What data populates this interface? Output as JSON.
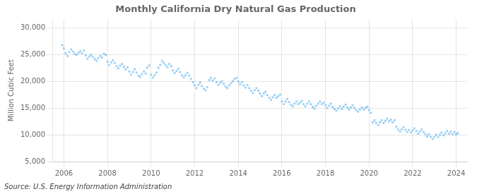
{
  "chart_data": {
    "type": "scatter",
    "title": "Monthly California Dry Natural Gas Production",
    "ylabel": "Million Cubic Feet",
    "annotations": [
      "Source: U.S. Energy Information Administration"
    ],
    "marker": "square",
    "grid": true,
    "xlim": [
      2005.5,
      2024.5
    ],
    "ylim": [
      5000,
      31500
    ],
    "xticks": [
      2006,
      2008,
      2010,
      2012,
      2014,
      2016,
      2018,
      2020,
      2022,
      2024
    ],
    "yticks": [
      {
        "value": 5000,
        "label": "5,000"
      },
      {
        "value": 10000,
        "label": "10,000"
      },
      {
        "value": 15000,
        "label": "15,000"
      },
      {
        "value": 20000,
        "label": "20,000"
      },
      {
        "value": 25000,
        "label": "25,000"
      },
      {
        "value": 30000,
        "label": "30,000"
      }
    ],
    "x": [
      2005.92,
      2006.0,
      2006.08,
      2006.17,
      2006.25,
      2006.33,
      2006.42,
      2006.5,
      2006.58,
      2006.67,
      2006.75,
      2006.83,
      2006.92,
      2007.0,
      2007.08,
      2007.17,
      2007.25,
      2007.33,
      2007.42,
      2007.5,
      2007.58,
      2007.67,
      2007.75,
      2007.83,
      2007.92,
      2008.0,
      2008.08,
      2008.17,
      2008.25,
      2008.33,
      2008.42,
      2008.5,
      2008.58,
      2008.67,
      2008.75,
      2008.83,
      2008.92,
      2009.0,
      2009.08,
      2009.17,
      2009.25,
      2009.33,
      2009.42,
      2009.5,
      2009.58,
      2009.67,
      2009.75,
      2009.83,
      2009.92,
      2010.0,
      2010.08,
      2010.17,
      2010.25,
      2010.33,
      2010.42,
      2010.5,
      2010.58,
      2010.67,
      2010.75,
      2010.83,
      2010.92,
      2011.0,
      2011.08,
      2011.17,
      2011.25,
      2011.33,
      2011.42,
      2011.5,
      2011.58,
      2011.67,
      2011.75,
      2011.83,
      2011.92,
      2012.0,
      2012.08,
      2012.17,
      2012.25,
      2012.33,
      2012.42,
      2012.5,
      2012.58,
      2012.67,
      2012.75,
      2012.83,
      2012.92,
      2013.0,
      2013.08,
      2013.17,
      2013.25,
      2013.33,
      2013.42,
      2013.5,
      2013.58,
      2013.67,
      2013.75,
      2013.83,
      2013.92,
      2014.0,
      2014.08,
      2014.17,
      2014.25,
      2014.33,
      2014.42,
      2014.5,
      2014.58,
      2014.67,
      2014.75,
      2014.83,
      2014.92,
      2015.0,
      2015.08,
      2015.17,
      2015.25,
      2015.33,
      2015.42,
      2015.5,
      2015.58,
      2015.67,
      2015.75,
      2015.83,
      2015.92,
      2016.0,
      2016.08,
      2016.17,
      2016.25,
      2016.33,
      2016.42,
      2016.5,
      2016.58,
      2016.67,
      2016.75,
      2016.83,
      2016.92,
      2017.0,
      2017.08,
      2017.17,
      2017.25,
      2017.33,
      2017.42,
      2017.5,
      2017.58,
      2017.67,
      2017.75,
      2017.83,
      2017.92,
      2018.0,
      2018.08,
      2018.17,
      2018.25,
      2018.33,
      2018.42,
      2018.5,
      2018.58,
      2018.67,
      2018.75,
      2018.83,
      2018.92,
      2019.0,
      2019.08,
      2019.17,
      2019.25,
      2019.33,
      2019.42,
      2019.5,
      2019.58,
      2019.67,
      2019.75,
      2019.83,
      2019.92,
      2020.0,
      2020.08,
      2020.17,
      2020.25,
      2020.33,
      2020.42,
      2020.5,
      2020.58,
      2020.67,
      2020.75,
      2020.83,
      2020.92,
      2021.0,
      2021.08,
      2021.17,
      2021.25,
      2021.33,
      2021.42,
      2021.5,
      2021.58,
      2021.67,
      2021.75,
      2021.83,
      2021.92,
      2022.0,
      2022.08,
      2022.17,
      2022.25,
      2022.33,
      2022.42,
      2022.5,
      2022.58,
      2022.67,
      2022.75,
      2022.83,
      2022.92,
      2023.0,
      2023.08,
      2023.17,
      2023.25,
      2023.33,
      2023.42,
      2023.5,
      2023.58,
      2023.67,
      2023.75,
      2023.83,
      2023.92,
      2024.0,
      2024.08
    ],
    "values": [
      26700,
      26100,
      25200,
      24700,
      25400,
      25900,
      25500,
      25100,
      24900,
      25300,
      25600,
      25200,
      25700,
      24800,
      24200,
      24600,
      24900,
      24500,
      24100,
      23800,
      24300,
      24700,
      24400,
      25100,
      24900,
      23600,
      23000,
      23500,
      23900,
      23400,
      22800,
      22400,
      22900,
      23200,
      22700,
      22200,
      22600,
      21800,
      21200,
      21700,
      22200,
      21600,
      21000,
      20800,
      21300,
      21800,
      21400,
      22500,
      22900,
      21200,
      20700,
      21100,
      21600,
      22500,
      23000,
      23800,
      23400,
      23000,
      22600,
      23200,
      22800,
      22000,
      21500,
      21900,
      22300,
      21700,
      21100,
      20700,
      21100,
      21500,
      21000,
      20400,
      19800,
      19200,
      18700,
      19300,
      19700,
      19100,
      18600,
      18300,
      18900,
      20200,
      20600,
      20100,
      20500,
      19800,
      19300,
      19700,
      20000,
      19500,
      19000,
      18700,
      19200,
      19600,
      20000,
      20400,
      20600,
      19900,
      19400,
      19800,
      19200,
      18800,
      19300,
      18700,
      18200,
      17800,
      18300,
      18700,
      18200,
      17700,
      17200,
      17700,
      18000,
      17400,
      16900,
      16500,
      17000,
      17400,
      16900,
      17200,
      17500,
      16200,
      15700,
      16200,
      16700,
      16100,
      15600,
      15300,
      15800,
      16200,
      15700,
      16000,
      16300,
      15700,
      15300,
      15800,
      16200,
      15700,
      15200,
      14900,
      15400,
      15800,
      16200,
      15700,
      16000,
      15500,
      15000,
      15400,
      15800,
      15200,
      14800,
      14500,
      14900,
      15300,
      14800,
      15200,
      15600,
      15100,
      14700,
      15100,
      15500,
      15000,
      14600,
      14300,
      14700,
      15100,
      14700,
      15000,
      15200,
      14600,
      14100,
      12300,
      12700,
      12200,
      11800,
      12300,
      12700,
      12200,
      12600,
      13000,
      12500,
      12800,
      12300,
      12700,
      11500,
      11000,
      10600,
      11000,
      11400,
      10900,
      10500,
      10900,
      10400,
      10800,
      11200,
      10700,
      10200,
      10600,
      11000,
      10500,
      10100,
      9700,
      10100,
      9600,
      9200,
      9600,
      10000,
      9600,
      10000,
      10400,
      9900,
      10300,
      10700,
      10200,
      10600,
      10100,
      10500,
      10100,
      10300
    ]
  }
}
